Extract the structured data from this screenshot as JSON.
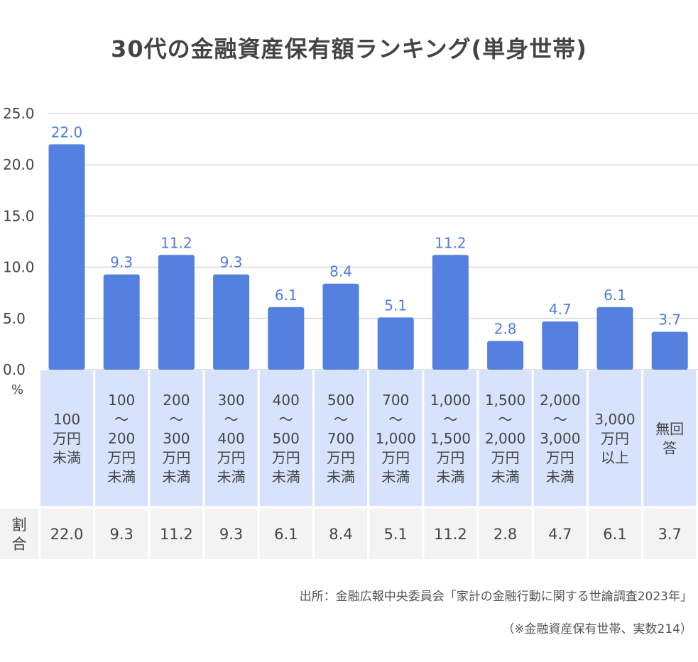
{
  "chart_data": {
    "type": "bar",
    "title": "30代の金融資産保有額ランキング(単身世帯)",
    "ylabel": "%",
    "ylim": [
      0,
      25
    ],
    "yticks": [
      "0.0",
      "5.0",
      "10.0",
      "15.0",
      "20.0",
      "25.0"
    ],
    "grid": true,
    "categories": [
      [
        "100",
        "万円",
        "未満"
      ],
      [
        "100",
        "〜",
        "200",
        "万円",
        "未満"
      ],
      [
        "200",
        "〜",
        "300",
        "万円",
        "未満"
      ],
      [
        "300",
        "〜",
        "400",
        "万円",
        "未満"
      ],
      [
        "400",
        "〜",
        "500",
        "万円",
        "未満"
      ],
      [
        "500",
        "〜",
        "700",
        "万円",
        "未満"
      ],
      [
        "700",
        "〜",
        "1,000",
        "万円",
        "未満"
      ],
      [
        "1,000",
        "〜",
        "1,500",
        "万円",
        "未満"
      ],
      [
        "1,500",
        "〜",
        "2,000",
        "万円",
        "未満"
      ],
      [
        "2,000",
        "〜",
        "3,000",
        "万円",
        "未満"
      ],
      [
        "3,000",
        "万円",
        "以上"
      ],
      [
        "無回",
        "答"
      ]
    ],
    "values": [
      22.0,
      9.3,
      11.2,
      9.3,
      6.1,
      8.4,
      5.1,
      11.2,
      2.8,
      4.7,
      6.1,
      3.7
    ],
    "value_labels": [
      "22.0",
      "9.3",
      "11.2",
      "9.3",
      "6.1",
      "8.4",
      "5.1",
      "11.2",
      "2.8",
      "4.7",
      "6.1",
      "3.7"
    ],
    "table_row_label": [
      "割",
      "合"
    ],
    "colors": {
      "bar": "#5480e0",
      "label": "#4f7be0",
      "header_cell": "#d7e3fd",
      "value_cell": "#f3f3f3",
      "grid": "#e2e2e2"
    }
  },
  "source": {
    "line1": "出所：金融広報中央委員会「家計の金融行動に関する世論調査2023年」",
    "line2": "（※金融資産保有世帯、実数214）"
  }
}
